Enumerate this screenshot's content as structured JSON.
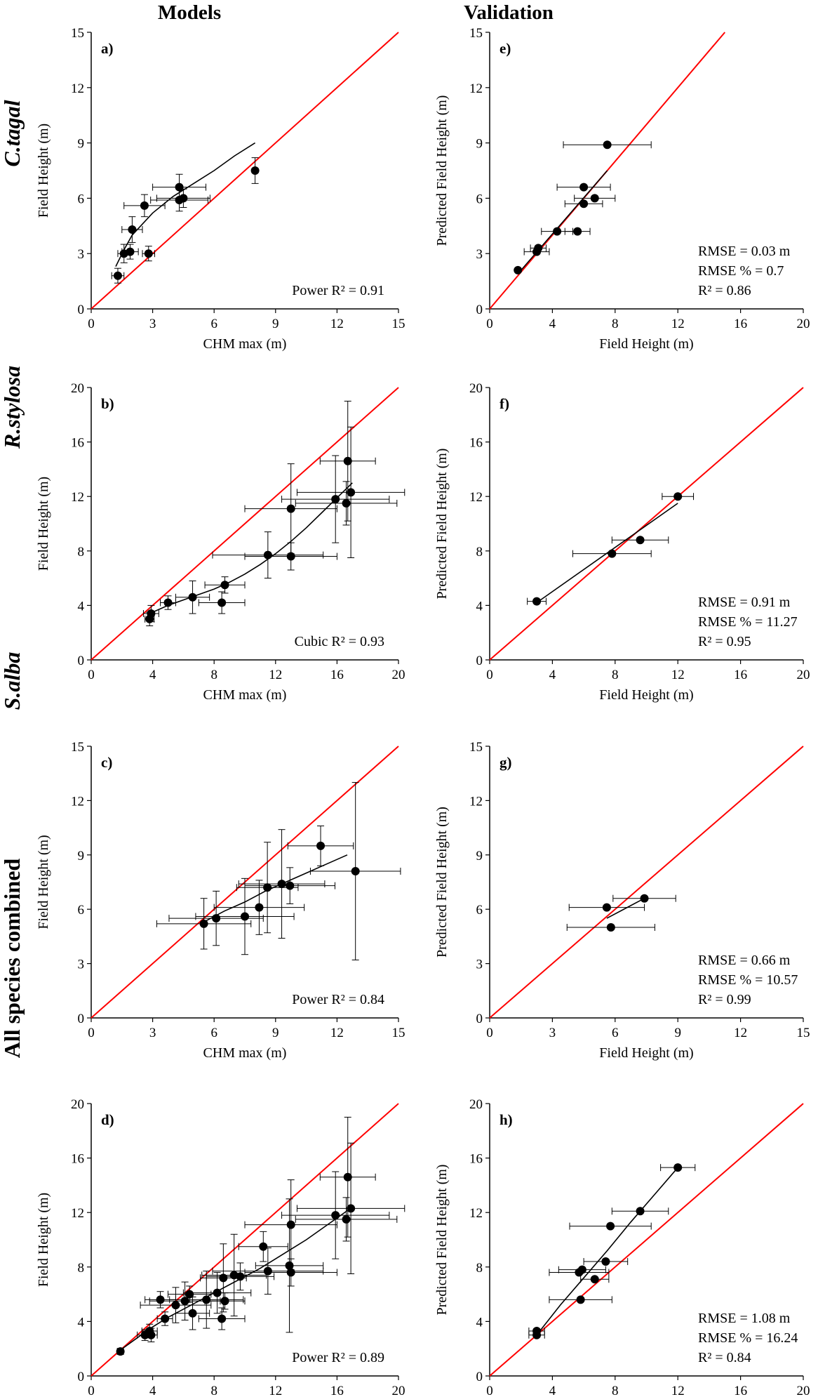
{
  "headers": {
    "models": "Models",
    "validation": "Validation"
  },
  "row_labels": [
    "C.tagal",
    "R.stylosa",
    "S.alba",
    "All species combined"
  ],
  "colors": {
    "identity": "#ff0000",
    "points": "#000000",
    "axis": "#000000"
  },
  "chart_data": [
    {
      "id": "a",
      "panel": "a)",
      "type": "scatter",
      "xlabel": "CHM max (m)",
      "ylabel": "Field Height (m)",
      "xlim": [
        0,
        15
      ],
      "ylim": [
        0,
        15
      ],
      "xticks": [
        "0",
        "3",
        "6",
        "9",
        "12",
        "15"
      ],
      "yticks": [
        "0",
        "3",
        "6",
        "9",
        "12",
        "15"
      ],
      "annotation": [
        "Power R² = 0.91"
      ],
      "points": [
        {
          "x": 1.3,
          "y": 1.8,
          "xe": 0.3,
          "ye": 0.4
        },
        {
          "x": 1.6,
          "y": 3.0,
          "xe": 0.3,
          "ye": 0.5
        },
        {
          "x": 1.9,
          "y": 3.1,
          "xe": 0.4,
          "ye": 0.4
        },
        {
          "x": 2.0,
          "y": 4.3,
          "xe": 0.5,
          "ye": 0.7
        },
        {
          "x": 2.6,
          "y": 5.6,
          "xe": 1.0,
          "ye": 0.6
        },
        {
          "x": 2.8,
          "y": 3.0,
          "xe": 0.3,
          "ye": 0.4
        },
        {
          "x": 4.3,
          "y": 6.6,
          "xe": 1.3,
          "ye": 0.7
        },
        {
          "x": 4.3,
          "y": 5.9,
          "xe": 1.4,
          "ye": 0.6
        },
        {
          "x": 4.5,
          "y": 6.0,
          "xe": 1.3,
          "ye": 0.5
        },
        {
          "x": 8.0,
          "y": 7.5,
          "xe": 0.0,
          "ye": 0.7
        }
      ],
      "fit": {
        "x": [
          1.2,
          1.6,
          2.0,
          2.5,
          3.0,
          4.0,
          5.0,
          6.0,
          7.0,
          8.0
        ],
        "y": [
          2.3,
          3.2,
          4.0,
          4.6,
          5.2,
          6.1,
          6.8,
          7.5,
          8.3,
          9.0
        ]
      }
    },
    {
      "id": "e",
      "panel": "e)",
      "type": "scatter",
      "xlabel": "Field Height (m)",
      "ylabel": "Predicted Field Height (m)",
      "xlim": [
        0,
        20
      ],
      "ylim": [
        0,
        15
      ],
      "xticks": [
        "0",
        "4",
        "8",
        "12",
        "16",
        "20"
      ],
      "yticks": [
        "0",
        "3",
        "6",
        "9",
        "12",
        "15"
      ],
      "annotation": [
        "RMSE = 0.03 m",
        "RMSE % = 0.7",
        "R² = 0.86"
      ],
      "points": [
        {
          "x": 1.8,
          "y": 2.1,
          "xe": 0.0,
          "ye": 0.0
        },
        {
          "x": 3.0,
          "y": 3.1,
          "xe": 0.8,
          "ye": 0.0
        },
        {
          "x": 3.1,
          "y": 3.3,
          "xe": 0.5,
          "ye": 0.0
        },
        {
          "x": 4.3,
          "y": 4.2,
          "xe": 1.0,
          "ye": 0.0
        },
        {
          "x": 5.6,
          "y": 4.2,
          "xe": 0.8,
          "ye": 0.0
        },
        {
          "x": 6.0,
          "y": 5.7,
          "xe": 1.2,
          "ye": 0.0
        },
        {
          "x": 6.0,
          "y": 6.6,
          "xe": 1.7,
          "ye": 0.0
        },
        {
          "x": 6.7,
          "y": 6.0,
          "xe": 1.3,
          "ye": 0.0
        },
        {
          "x": 7.5,
          "y": 8.9,
          "xe": 2.8,
          "ye": 0.0
        }
      ],
      "fit": {
        "x": [
          1.8,
          7.5
        ],
        "y": [
          1.9,
          7.5
        ]
      }
    },
    {
      "id": "b",
      "panel": "b)",
      "type": "scatter",
      "xlabel": "CHM max (m)",
      "ylabel": "Field Height (m)",
      "xlim": [
        0,
        20
      ],
      "ylim": [
        0,
        20
      ],
      "xticks": [
        "0",
        "4",
        "8",
        "12",
        "16",
        "20"
      ],
      "yticks": [
        "0",
        "4",
        "8",
        "12",
        "16",
        "20"
      ],
      "annotation": [
        "Cubic R² = 0.93"
      ],
      "points": [
        {
          "x": 3.8,
          "y": 3.0,
          "xe": 0.3,
          "ye": 0.5
        },
        {
          "x": 3.9,
          "y": 3.4,
          "xe": 0.5,
          "ye": 0.6
        },
        {
          "x": 5.0,
          "y": 4.2,
          "xe": 0.5,
          "ye": 0.5
        },
        {
          "x": 6.6,
          "y": 4.6,
          "xe": 1.1,
          "ye": 1.2
        },
        {
          "x": 8.7,
          "y": 5.5,
          "xe": 1.3,
          "ye": 0.6
        },
        {
          "x": 8.5,
          "y": 4.2,
          "xe": 1.5,
          "ye": 0.8
        },
        {
          "x": 11.5,
          "y": 7.7,
          "xe": 3.6,
          "ye": 1.7
        },
        {
          "x": 13.0,
          "y": 7.6,
          "xe": 3.0,
          "ye": 1.0
        },
        {
          "x": 13.0,
          "y": 11.1,
          "xe": 3.0,
          "ye": 3.3
        },
        {
          "x": 15.9,
          "y": 11.8,
          "xe": 3.5,
          "ye": 3.2
        },
        {
          "x": 16.6,
          "y": 11.5,
          "xe": 3.3,
          "ye": 1.6
        },
        {
          "x": 16.7,
          "y": 14.6,
          "xe": 1.8,
          "ye": 4.4
        },
        {
          "x": 16.9,
          "y": 12.3,
          "xe": 3.5,
          "ye": 4.8
        }
      ],
      "fit": {
        "x": [
          3.8,
          5,
          6,
          7,
          8,
          9,
          10,
          11,
          12,
          13,
          14,
          15,
          16,
          17
        ],
        "y": [
          3.4,
          4.0,
          4.4,
          4.8,
          5.2,
          5.7,
          6.3,
          7.0,
          7.8,
          8.7,
          9.7,
          10.8,
          11.9,
          13.0
        ]
      }
    },
    {
      "id": "f",
      "panel": "f)",
      "type": "scatter",
      "xlabel": "Field Height (m)",
      "ylabel": "Predicted Field Height (m)",
      "xlim": [
        0,
        20
      ],
      "ylim": [
        0,
        20
      ],
      "xticks": [
        "0",
        "4",
        "8",
        "12",
        "16",
        "20"
      ],
      "yticks": [
        "0",
        "4",
        "8",
        "12",
        "16",
        "20"
      ],
      "annotation": [
        "RMSE = 0.91 m",
        "RMSE % = 11.27",
        "R² = 0.95"
      ],
      "points": [
        {
          "x": 3.0,
          "y": 4.3,
          "xe": 0.6,
          "ye": 0.0
        },
        {
          "x": 7.8,
          "y": 7.8,
          "xe": 2.5,
          "ye": 0.0
        },
        {
          "x": 9.6,
          "y": 8.8,
          "xe": 1.8,
          "ye": 0.0
        },
        {
          "x": 12.0,
          "y": 12.0,
          "xe": 1.0,
          "ye": 0.0
        }
      ],
      "fit": {
        "x": [
          3.0,
          12.0
        ],
        "y": [
          4.2,
          11.5
        ]
      }
    },
    {
      "id": "c",
      "panel": "c)",
      "type": "scatter",
      "xlabel": "CHM max (m)",
      "ylabel": "Field Height (m)",
      "xlim": [
        0,
        15
      ],
      "ylim": [
        0,
        15
      ],
      "xticks": [
        "0",
        "3",
        "6",
        "9",
        "12",
        "15"
      ],
      "yticks": [
        "0",
        "3",
        "6",
        "9",
        "12",
        "15"
      ],
      "annotation": [
        "Power R² = 0.84"
      ],
      "points": [
        {
          "x": 5.5,
          "y": 5.2,
          "xe": 2.3,
          "ye": 1.4
        },
        {
          "x": 6.1,
          "y": 5.5,
          "xe": 2.3,
          "ye": 1.5
        },
        {
          "x": 7.5,
          "y": 5.6,
          "xe": 2.4,
          "ye": 2.1
        },
        {
          "x": 8.2,
          "y": 6.1,
          "xe": 2.2,
          "ye": 1.5
        },
        {
          "x": 8.6,
          "y": 7.2,
          "xe": 1.5,
          "ye": 2.5
        },
        {
          "x": 9.3,
          "y": 7.4,
          "xe": 2.1,
          "ye": 3.0
        },
        {
          "x": 9.7,
          "y": 7.3,
          "xe": 2.2,
          "ye": 1.0
        },
        {
          "x": 11.2,
          "y": 9.5,
          "xe": 1.6,
          "ye": 1.1
        },
        {
          "x": 12.9,
          "y": 8.1,
          "xe": 2.2,
          "ye": 4.9
        }
      ],
      "fit": {
        "x": [
          5.5,
          6.5,
          7.5,
          8.5,
          9.5,
          10.5,
          11.5,
          12.5
        ],
        "y": [
          5.3,
          5.9,
          6.4,
          7.0,
          7.5,
          8.0,
          8.5,
          9.0
        ]
      }
    },
    {
      "id": "g",
      "panel": "g)",
      "type": "scatter",
      "xlabel": "Field Height (m)",
      "ylabel": "Predicted Field Height (m)",
      "xlim": [
        0,
        15
      ],
      "ylim": [
        0,
        15
      ],
      "xticks": [
        "0",
        "3",
        "6",
        "9",
        "12",
        "15"
      ],
      "yticks": [
        "0",
        "3",
        "6",
        "9",
        "12",
        "15"
      ],
      "annotation": [
        "RMSE = 0.66 m",
        "RMSE % = 10.57",
        "R² = 0.99"
      ],
      "points": [
        {
          "x": 5.6,
          "y": 6.1,
          "xe": 1.8,
          "ye": 0.0
        },
        {
          "x": 5.8,
          "y": 5.0,
          "xe": 2.1,
          "ye": 0.0
        },
        {
          "x": 7.4,
          "y": 6.6,
          "xe": 1.5,
          "ye": 0.0
        }
      ],
      "fit": {
        "x": [
          5.6,
          7.4
        ],
        "y": [
          5.5,
          6.6
        ]
      }
    },
    {
      "id": "d",
      "panel": "d)",
      "type": "scatter",
      "xlabel": "CHM max (m)",
      "ylabel": "Field Height (m)",
      "xlim": [
        0,
        20
      ],
      "ylim": [
        0,
        20
      ],
      "xticks": [
        "0",
        "4",
        "8",
        "12",
        "16",
        "20"
      ],
      "yticks": [
        "0",
        "4",
        "8",
        "12",
        "16",
        "20"
      ],
      "annotation": [
        "Power R² = 0.89"
      ],
      "points": [
        {
          "x": 1.9,
          "y": 1.8,
          "xe": 0.2,
          "ye": 0.2
        },
        {
          "x": 3.5,
          "y": 3.0,
          "xe": 0.5,
          "ye": 0.4
        },
        {
          "x": 3.8,
          "y": 3.3,
          "xe": 0.5,
          "ye": 0.5
        },
        {
          "x": 3.9,
          "y": 3.0,
          "xe": 0.4,
          "ye": 0.5
        },
        {
          "x": 4.5,
          "y": 5.6,
          "xe": 1.0,
          "ye": 0.6
        },
        {
          "x": 4.8,
          "y": 4.2,
          "xe": 0.5,
          "ye": 0.5
        },
        {
          "x": 5.5,
          "y": 5.2,
          "xe": 2.3,
          "ye": 1.3
        },
        {
          "x": 6.1,
          "y": 5.5,
          "xe": 2.3,
          "ye": 1.4
        },
        {
          "x": 6.4,
          "y": 6.0,
          "xe": 1.4,
          "ye": 0.6
        },
        {
          "x": 6.6,
          "y": 4.6,
          "xe": 1.1,
          "ye": 1.2
        },
        {
          "x": 7.5,
          "y": 5.6,
          "xe": 2.4,
          "ye": 2.1
        },
        {
          "x": 8.2,
          "y": 6.1,
          "xe": 2.2,
          "ye": 1.5
        },
        {
          "x": 8.6,
          "y": 7.2,
          "xe": 1.5,
          "ye": 2.5
        },
        {
          "x": 8.7,
          "y": 5.5,
          "xe": 1.3,
          "ye": 0.6
        },
        {
          "x": 8.5,
          "y": 4.2,
          "xe": 1.5,
          "ye": 0.8
        },
        {
          "x": 9.3,
          "y": 7.4,
          "xe": 2.1,
          "ye": 3.0
        },
        {
          "x": 9.7,
          "y": 7.3,
          "xe": 2.2,
          "ye": 1.0
        },
        {
          "x": 11.2,
          "y": 9.5,
          "xe": 1.6,
          "ye": 1.1
        },
        {
          "x": 11.5,
          "y": 7.7,
          "xe": 3.6,
          "ye": 1.7
        },
        {
          "x": 12.9,
          "y": 8.1,
          "xe": 2.2,
          "ye": 4.9
        },
        {
          "x": 13.0,
          "y": 7.6,
          "xe": 3.0,
          "ye": 1.0
        },
        {
          "x": 13.0,
          "y": 11.1,
          "xe": 3.0,
          "ye": 3.3
        },
        {
          "x": 15.9,
          "y": 11.8,
          "xe": 3.5,
          "ye": 3.2
        },
        {
          "x": 16.6,
          "y": 11.5,
          "xe": 3.3,
          "ye": 1.6
        },
        {
          "x": 16.7,
          "y": 14.6,
          "xe": 1.8,
          "ye": 4.4
        },
        {
          "x": 16.9,
          "y": 12.3,
          "xe": 3.5,
          "ye": 4.8
        }
      ],
      "fit": {
        "x": [
          1.9,
          3,
          4,
          5,
          6,
          7,
          8,
          9,
          10,
          11,
          12,
          13,
          14,
          15,
          16,
          17
        ],
        "y": [
          1.9,
          2.8,
          3.6,
          4.3,
          4.9,
          5.5,
          6.1,
          6.7,
          7.3,
          7.9,
          8.6,
          9.3,
          10.0,
          10.8,
          11.6,
          12.4
        ]
      }
    },
    {
      "id": "h",
      "panel": "h)",
      "type": "scatter",
      "xlabel": "Field Height (m)",
      "ylabel": "Predicted Field Height (m)",
      "xlim": [
        0,
        20
      ],
      "ylim": [
        0,
        20
      ],
      "xticks": [
        "0",
        "4",
        "8",
        "12",
        "16",
        "20"
      ],
      "yticks": [
        "0",
        "4",
        "8",
        "12",
        "16",
        "20"
      ],
      "annotation": [
        "RMSE = 1.08 m",
        "RMSE % = 16.24",
        "R² = 0.84"
      ],
      "points": [
        {
          "x": 3.0,
          "y": 3.0,
          "xe": 0.5,
          "ye": 0.0
        },
        {
          "x": 3.0,
          "y": 3.3,
          "xe": 0.5,
          "ye": 0.0
        },
        {
          "x": 5.7,
          "y": 7.6,
          "xe": 1.9,
          "ye": 0.0
        },
        {
          "x": 5.9,
          "y": 7.8,
          "xe": 1.5,
          "ye": 0.0
        },
        {
          "x": 5.8,
          "y": 5.6,
          "xe": 2.0,
          "ye": 0.0
        },
        {
          "x": 6.7,
          "y": 7.1,
          "xe": 0.9,
          "ye": 0.0
        },
        {
          "x": 7.4,
          "y": 8.4,
          "xe": 1.4,
          "ye": 0.0
        },
        {
          "x": 7.7,
          "y": 11.0,
          "xe": 2.6,
          "ye": 0.0
        },
        {
          "x": 9.6,
          "y": 12.1,
          "xe": 1.8,
          "ye": 0.0
        },
        {
          "x": 12.0,
          "y": 15.3,
          "xe": 1.1,
          "ye": 0.0
        }
      ],
      "fit": {
        "x": [
          3.0,
          4.5,
          6.0,
          7.5,
          9.0,
          10.5,
          12.0
        ],
        "y": [
          3.0,
          5.2,
          7.2,
          9.2,
          11.3,
          13.3,
          15.3
        ]
      }
    }
  ]
}
